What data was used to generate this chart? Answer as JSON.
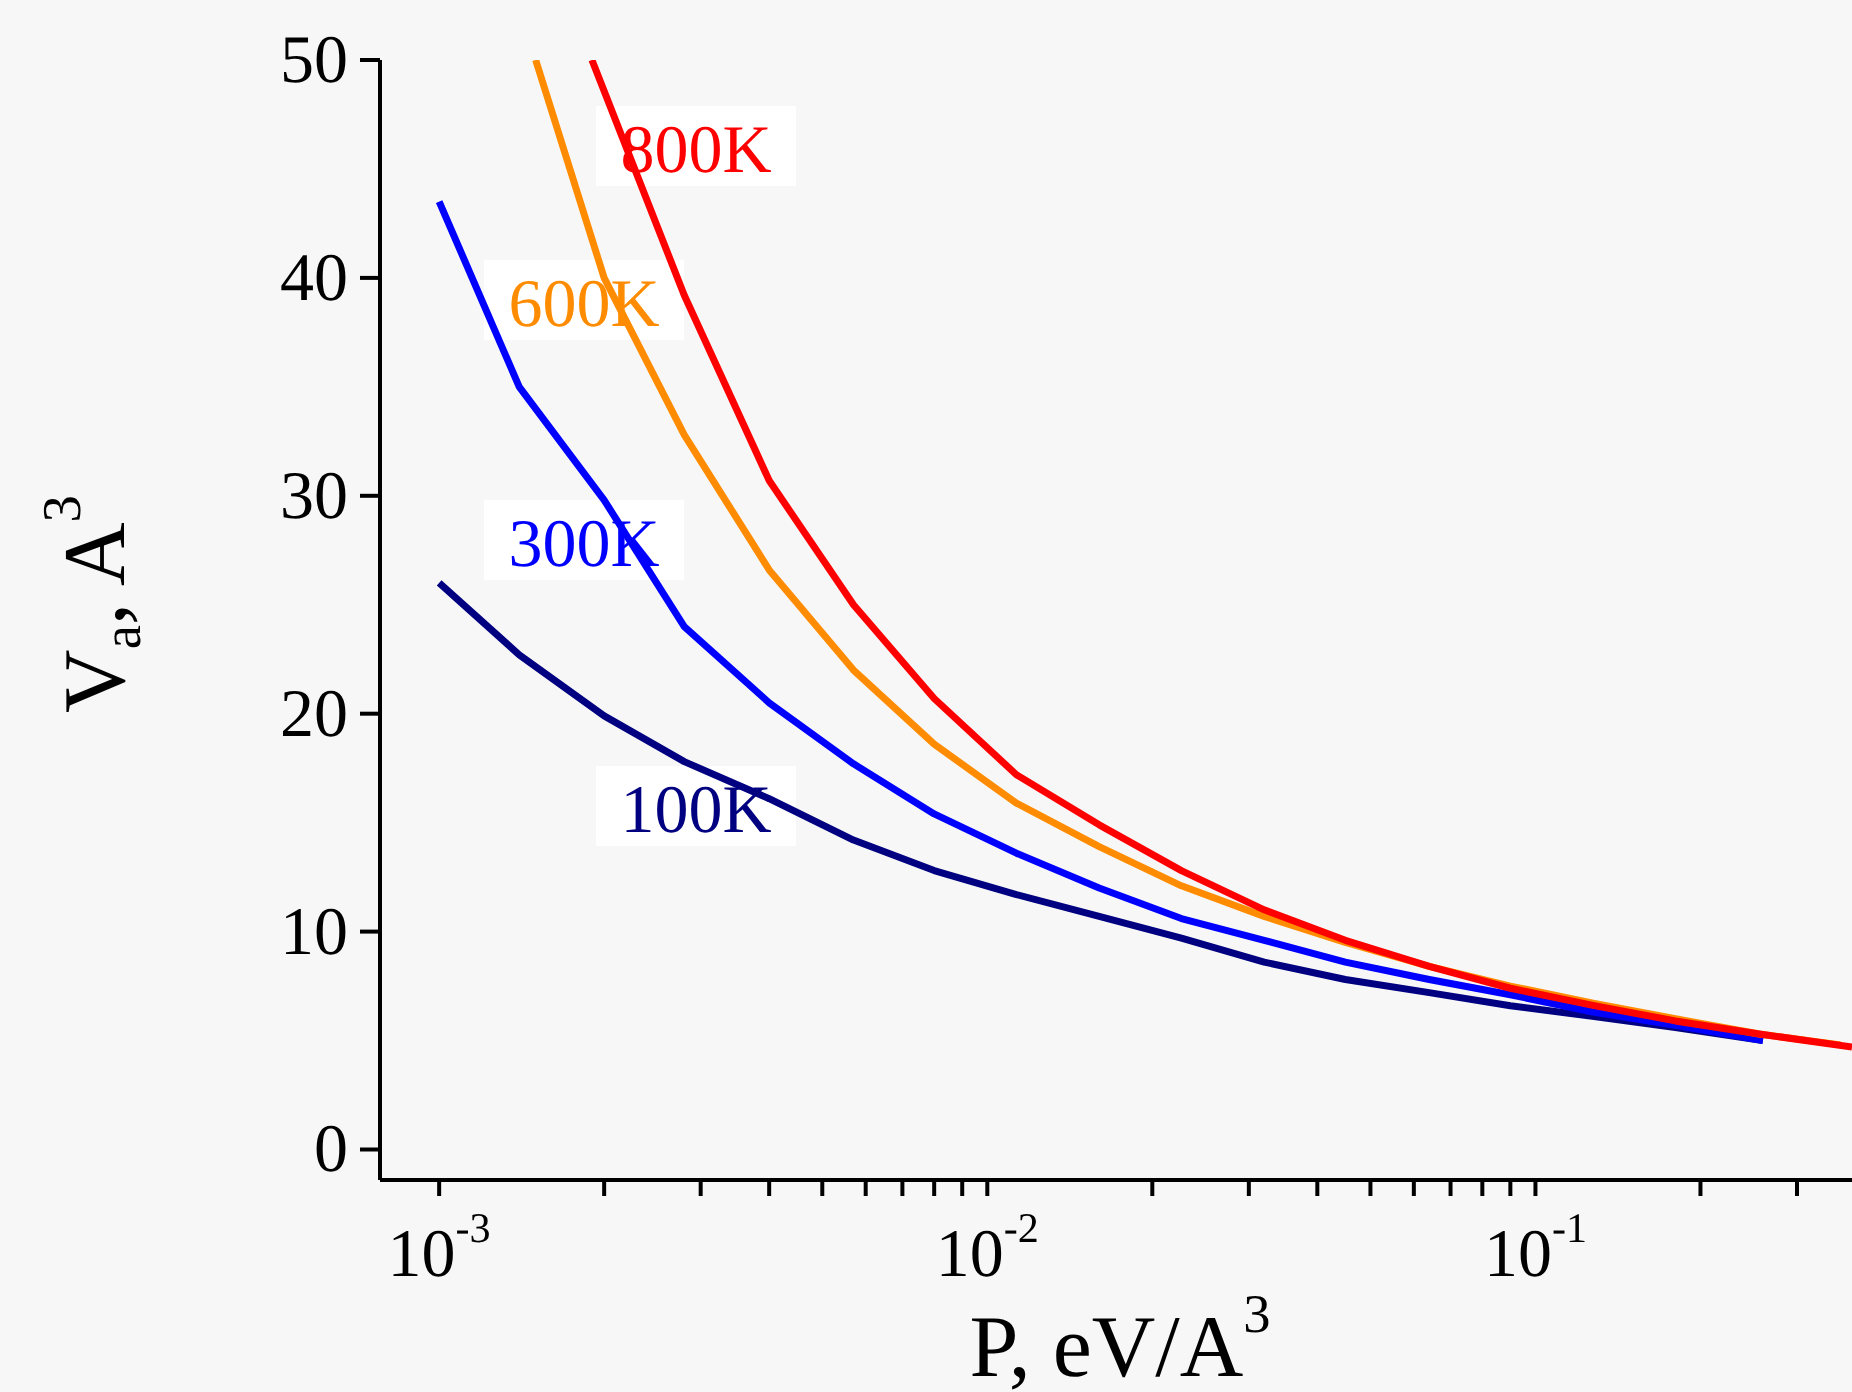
{
  "chart_data": {
    "type": "line",
    "xlabel": "P, eV/A$^{3}$",
    "ylabel": "V$_{a}$, A$^{3}$",
    "log": "x",
    "marker": "none",
    "line_style": "solid",
    "xlim": [
      0.00078,
      0.378
    ],
    "ylim": [
      -1.4,
      50
    ],
    "xticks": [
      {
        "value": 0.001,
        "label": "10$^{-3}$"
      },
      {
        "value": 0.002,
        "label": null
      },
      {
        "value": 0.003,
        "label": null
      },
      {
        "value": 0.004,
        "label": null
      },
      {
        "value": 0.005,
        "label": null
      },
      {
        "value": 0.006,
        "label": null
      },
      {
        "value": 0.007,
        "label": null
      },
      {
        "value": 0.008,
        "label": null
      },
      {
        "value": 0.009,
        "label": null
      },
      {
        "value": 0.01,
        "label": "10$^{-2}$"
      },
      {
        "value": 0.02,
        "label": null
      },
      {
        "value": 0.03,
        "label": null
      },
      {
        "value": 0.04,
        "label": null
      },
      {
        "value": 0.05,
        "label": null
      },
      {
        "value": 0.06,
        "label": null
      },
      {
        "value": 0.07,
        "label": null
      },
      {
        "value": 0.08,
        "label": null
      },
      {
        "value": 0.09,
        "label": null
      },
      {
        "value": 0.1,
        "label": "10$^{-1}$"
      },
      {
        "value": 0.2,
        "label": null
      },
      {
        "value": 0.3,
        "label": null
      }
    ],
    "yticks": [
      0,
      10,
      20,
      30,
      40,
      50
    ],
    "series": [
      {
        "color": "#000080",
        "x": [
          0.001,
          0.0014,
          0.002,
          0.0028,
          0.004,
          0.0057,
          0.008,
          0.0113,
          0.016,
          0.0226,
          0.032,
          0.045,
          0.064,
          0.09,
          0.128,
          0.18,
          0.26
        ],
        "values": [
          26.0,
          22.7,
          19.9,
          17.8,
          16.1,
          14.2,
          12.8,
          11.7,
          10.7,
          9.7,
          8.6,
          7.8,
          7.2,
          6.6,
          6.1,
          5.6,
          5.0
        ]
      },
      {
        "color": "#0000ff",
        "x": [
          0.001,
          0.0014,
          0.002,
          0.0028,
          0.004,
          0.0057,
          0.008,
          0.0113,
          0.016,
          0.0226,
          0.032,
          0.045,
          0.064,
          0.09,
          0.128,
          0.18,
          0.26
        ],
        "values": [
          43.5,
          35.0,
          29.8,
          24.0,
          20.5,
          17.7,
          15.4,
          13.6,
          12.0,
          10.6,
          9.6,
          8.6,
          7.8,
          7.1,
          6.3,
          5.7,
          5.0
        ]
      },
      {
        "color": "#ff8c00",
        "x": [
          0.0015,
          0.002,
          0.0028,
          0.004,
          0.0057,
          0.008,
          0.0113,
          0.016,
          0.0226,
          0.032,
          0.045,
          0.064,
          0.09,
          0.128,
          0.18,
          0.256,
          0.36
        ],
        "values": [
          50,
          40,
          32.8,
          26.6,
          22.0,
          18.6,
          15.9,
          13.9,
          12.1,
          10.7,
          9.5,
          8.4,
          7.5,
          6.7,
          6.0,
          5.3,
          4.8
        ]
      },
      {
        "color": "#ff0000",
        "x": [
          0.0019,
          0.0028,
          0.004,
          0.0057,
          0.008,
          0.0113,
          0.016,
          0.0226,
          0.032,
          0.045,
          0.064,
          0.09,
          0.128,
          0.18,
          0.256,
          0.378
        ],
        "values": [
          50,
          39.2,
          30.7,
          25.0,
          20.7,
          17.2,
          14.9,
          12.8,
          11.0,
          9.6,
          8.4,
          7.4,
          6.6,
          5.9,
          5.3,
          4.7
        ]
      }
    ],
    "annotations": [
      "800K",
      "600K",
      "300K",
      "100K"
    ]
  }
}
